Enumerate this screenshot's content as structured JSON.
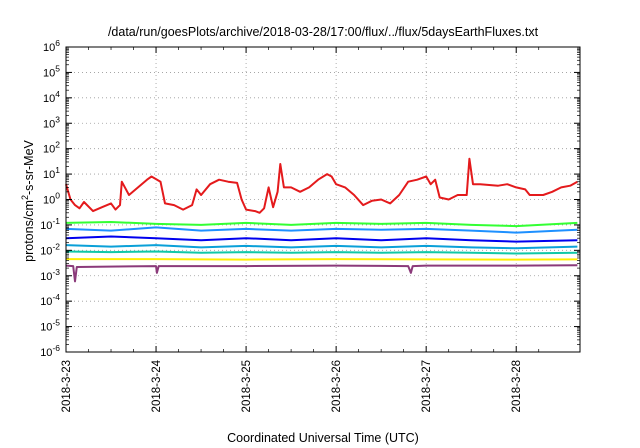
{
  "chart_data": {
    "type": "line",
    "title": "/data/run/goesPlots/archive/2018-03-28/17:00/flux/../flux/5daysEarthFluxes.txt",
    "xlabel": "Coordinated Universal Time (UTC)",
    "ylabel": {
      "pre": "protons/cm",
      "sup": "2",
      "post": "-s-sr-MeV"
    },
    "y_scale": "log",
    "ylim_exponents": [
      -6,
      6
    ],
    "ytick_base": "10",
    "ytick_exponents": [
      "6",
      "5",
      "4",
      "3",
      "2",
      "1",
      "0",
      "-1",
      "-2",
      "-3",
      "-4",
      "-5",
      "-6"
    ],
    "x_start": "2018-03-23",
    "x_end": "2018-03-28 17:00",
    "xticks": [
      "2018-3-23",
      "2018-3-24",
      "2018-3-25",
      "2018-3-26",
      "2018-3-27",
      "2018-3-28"
    ],
    "grid": true,
    "series": [
      {
        "color": "#e41a1c",
        "points": [
          [
            0.0,
            4.0
          ],
          [
            0.05,
            1.0
          ],
          [
            0.1,
            0.6
          ],
          [
            0.15,
            0.45
          ],
          [
            0.2,
            0.8
          ],
          [
            0.3,
            0.35
          ],
          [
            0.4,
            0.5
          ],
          [
            0.5,
            0.7
          ],
          [
            0.55,
            0.4
          ],
          [
            0.6,
            0.6
          ],
          [
            0.62,
            5.0
          ],
          [
            0.7,
            1.5
          ],
          [
            0.8,
            3.0
          ],
          [
            0.9,
            6.0
          ],
          [
            0.95,
            8.0
          ],
          [
            1.05,
            5.0
          ],
          [
            1.1,
            0.7
          ],
          [
            1.2,
            0.6
          ],
          [
            1.3,
            0.4
          ],
          [
            1.4,
            0.6
          ],
          [
            1.45,
            2.5
          ],
          [
            1.5,
            1.5
          ],
          [
            1.6,
            4.0
          ],
          [
            1.7,
            6.0
          ],
          [
            1.8,
            5.0
          ],
          [
            1.9,
            4.5
          ],
          [
            1.95,
            1.0
          ],
          [
            2.0,
            0.4
          ],
          [
            2.1,
            0.35
          ],
          [
            2.15,
            0.3
          ],
          [
            2.2,
            0.45
          ],
          [
            2.25,
            3.0
          ],
          [
            2.3,
            0.5
          ],
          [
            2.35,
            2.0
          ],
          [
            2.38,
            25.0
          ],
          [
            2.42,
            3.0
          ],
          [
            2.5,
            3.0
          ],
          [
            2.6,
            2.0
          ],
          [
            2.7,
            3.0
          ],
          [
            2.8,
            6.0
          ],
          [
            2.9,
            10.0
          ],
          [
            2.95,
            8.0
          ],
          [
            3.0,
            4.0
          ],
          [
            3.1,
            3.0
          ],
          [
            3.2,
            1.5
          ],
          [
            3.3,
            0.6
          ],
          [
            3.4,
            0.9
          ],
          [
            3.5,
            1.0
          ],
          [
            3.6,
            0.7
          ],
          [
            3.7,
            1.5
          ],
          [
            3.8,
            5.0
          ],
          [
            3.9,
            6.0
          ],
          [
            4.0,
            8.0
          ],
          [
            4.05,
            4.0
          ],
          [
            4.1,
            6.0
          ],
          [
            4.15,
            1.2
          ],
          [
            4.25,
            1.0
          ],
          [
            4.35,
            1.5
          ],
          [
            4.45,
            1.5
          ],
          [
            4.48,
            40.0
          ],
          [
            4.52,
            4.0
          ],
          [
            4.6,
            4.0
          ],
          [
            4.8,
            3.5
          ],
          [
            4.9,
            4.0
          ],
          [
            5.0,
            3.0
          ],
          [
            5.1,
            2.5
          ],
          [
            5.15,
            1.5
          ],
          [
            5.3,
            1.5
          ],
          [
            5.4,
            2.0
          ],
          [
            5.5,
            3.0
          ],
          [
            5.6,
            3.5
          ],
          [
            5.68,
            5.0
          ]
        ]
      },
      {
        "color": "#33ff33",
        "points": [
          [
            0.0,
            0.12
          ],
          [
            0.5,
            0.13
          ],
          [
            1.0,
            0.11
          ],
          [
            1.5,
            0.1
          ],
          [
            2.0,
            0.12
          ],
          [
            2.5,
            0.1
          ],
          [
            3.0,
            0.12
          ],
          [
            3.5,
            0.11
          ],
          [
            4.0,
            0.12
          ],
          [
            4.5,
            0.1
          ],
          [
            5.0,
            0.09
          ],
          [
            5.68,
            0.12
          ]
        ]
      },
      {
        "color": "#1e90ff",
        "points": [
          [
            0.0,
            0.07
          ],
          [
            0.5,
            0.06
          ],
          [
            1.0,
            0.08
          ],
          [
            1.5,
            0.06
          ],
          [
            2.0,
            0.07
          ],
          [
            2.5,
            0.06
          ],
          [
            3.0,
            0.07
          ],
          [
            3.5,
            0.065
          ],
          [
            4.0,
            0.07
          ],
          [
            4.5,
            0.06
          ],
          [
            5.0,
            0.05
          ],
          [
            5.68,
            0.065
          ]
        ]
      },
      {
        "color": "#0000ee",
        "points": [
          [
            0.0,
            0.03
          ],
          [
            0.5,
            0.035
          ],
          [
            1.0,
            0.03
          ],
          [
            1.5,
            0.025
          ],
          [
            2.0,
            0.03
          ],
          [
            2.5,
            0.025
          ],
          [
            3.0,
            0.03
          ],
          [
            3.5,
            0.025
          ],
          [
            4.0,
            0.03
          ],
          [
            4.5,
            0.025
          ],
          [
            5.0,
            0.022
          ],
          [
            5.68,
            0.025
          ]
        ]
      },
      {
        "color": "#0aa0d8",
        "points": [
          [
            0.0,
            0.016
          ],
          [
            0.5,
            0.014
          ],
          [
            1.0,
            0.016
          ],
          [
            1.5,
            0.013
          ],
          [
            2.0,
            0.015
          ],
          [
            2.5,
            0.013
          ],
          [
            3.0,
            0.015
          ],
          [
            3.5,
            0.013
          ],
          [
            4.0,
            0.015
          ],
          [
            4.5,
            0.013
          ],
          [
            5.0,
            0.012
          ],
          [
            5.68,
            0.014
          ]
        ]
      },
      {
        "color": "#10c8a8",
        "points": [
          [
            0.0,
            0.009
          ],
          [
            0.5,
            0.0085
          ],
          [
            1.0,
            0.009
          ],
          [
            1.5,
            0.008
          ],
          [
            2.0,
            0.0085
          ],
          [
            2.5,
            0.008
          ],
          [
            3.0,
            0.0085
          ],
          [
            3.5,
            0.008
          ],
          [
            4.0,
            0.0085
          ],
          [
            4.5,
            0.008
          ],
          [
            5.0,
            0.0075
          ],
          [
            5.68,
            0.008
          ]
        ]
      },
      {
        "color": "#ffee00",
        "points": [
          [
            0.0,
            0.0045
          ],
          [
            1.0,
            0.0045
          ],
          [
            2.0,
            0.0043
          ],
          [
            3.0,
            0.0045
          ],
          [
            4.0,
            0.0044
          ],
          [
            5.0,
            0.0043
          ],
          [
            5.68,
            0.0044
          ]
        ]
      },
      {
        "color": "#8b3a7a",
        "points": [
          [
            0.0,
            0.0025
          ],
          [
            0.08,
            0.0024
          ],
          [
            0.1,
            0.0006
          ],
          [
            0.12,
            0.0022
          ],
          [
            1.0,
            0.0024
          ],
          [
            1.01,
            0.0013
          ],
          [
            1.03,
            0.0024
          ],
          [
            2.0,
            0.0024
          ],
          [
            3.0,
            0.0025
          ],
          [
            3.8,
            0.0024
          ],
          [
            3.83,
            0.0013
          ],
          [
            3.85,
            0.0024
          ],
          [
            4.0,
            0.0025
          ],
          [
            5.0,
            0.0025
          ],
          [
            5.68,
            0.0026
          ]
        ]
      }
    ]
  }
}
